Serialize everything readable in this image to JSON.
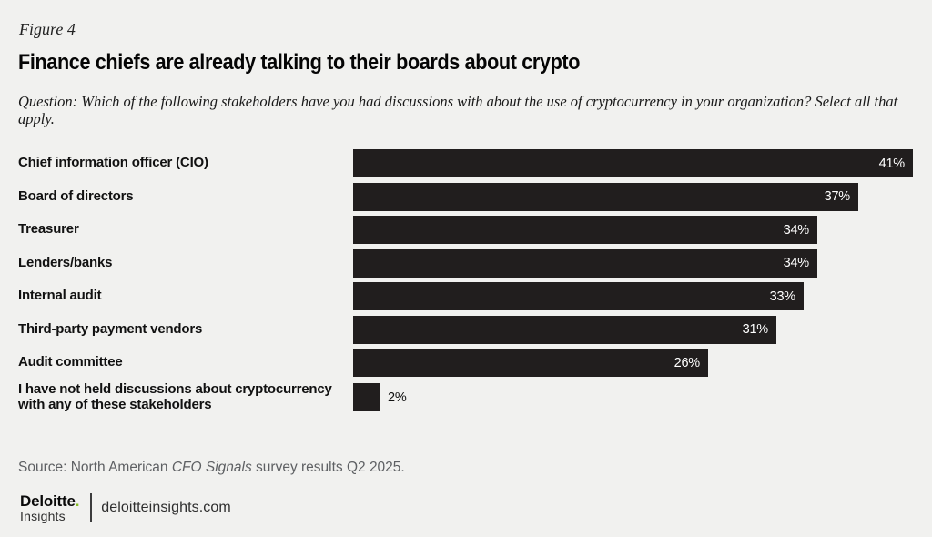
{
  "figure_label": "Figure 4",
  "title": "Finance chiefs are already talking to their boards about crypto",
  "question": "Question: Which of the following stakeholders have you had discussions with about the use of cryptocurrency in your organization? Select all that apply.",
  "chart_data": {
    "type": "bar",
    "orientation": "horizontal",
    "title": "Finance chiefs are already talking to their boards about crypto",
    "categories": [
      "Chief information officer (CIO)",
      "Board of directors",
      "Treasurer",
      "Lenders/banks",
      "Internal audit",
      "Third-party payment vendors",
      "Audit committee",
      "I have not held discussions about cryptocurrency with any of these stakeholders"
    ],
    "values": [
      41,
      37,
      34,
      34,
      33,
      31,
      26,
      2
    ],
    "value_labels": [
      "41%",
      "37%",
      "34%",
      "34%",
      "33%",
      "31%",
      "26%",
      "2%"
    ],
    "xlim": [
      0,
      41
    ],
    "grid": false,
    "legend": false,
    "bar_color": "#211e1e",
    "value_label_color_inside": "#ffffff",
    "value_label_color_outside": "#111111",
    "outside_label_threshold": 5
  },
  "source": {
    "part1": "Source: North American ",
    "italic": "CFO Signals",
    "part2": " survey results Q2 2025."
  },
  "footer": {
    "brand_name": "Deloitte",
    "brand_dot": ".",
    "brand_sub": "Insights",
    "site": "deloitteinsights.com",
    "brand_green": "#86BC25"
  },
  "colors": {
    "background": "#f1f1ef",
    "bar": "#211e1e",
    "title_text": "#050505",
    "source_text": "#5e6063"
  }
}
